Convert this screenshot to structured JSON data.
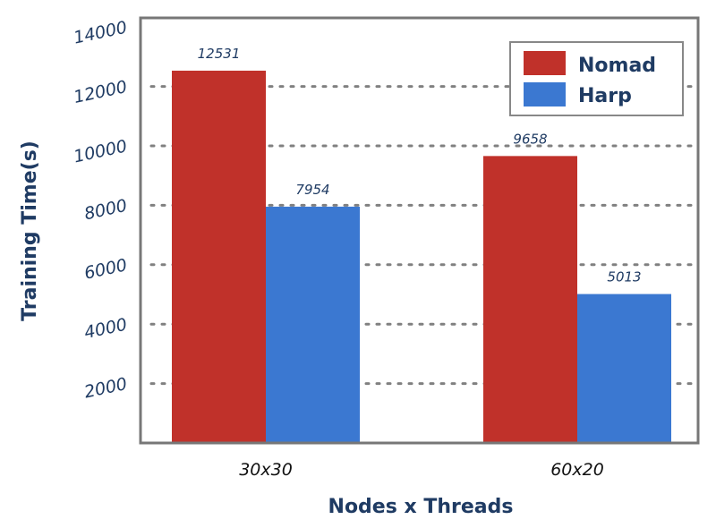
{
  "chart_data": {
    "type": "bar",
    "categories": [
      "30x30",
      "60x20"
    ],
    "series": [
      {
        "name": "Nomad",
        "color": "#c0312a",
        "values": [
          12531,
          9658
        ],
        "labels": [
          "12531",
          "9658"
        ]
      },
      {
        "name": "Harp",
        "color": "#3b78d1",
        "values": [
          7954,
          5013
        ],
        "labels": [
          "7954",
          "5013"
        ]
      }
    ],
    "xlabel": "Nodes x Threads",
    "ylabel": "Training Time(s)",
    "yticks": [
      2000,
      4000,
      6000,
      8000,
      10000,
      12000,
      14000
    ],
    "ytick_labels": [
      "2000",
      "4000",
      "6000",
      "8000",
      "10000",
      "12000",
      "14000"
    ],
    "grid": true,
    "legend_position": "top-right"
  }
}
